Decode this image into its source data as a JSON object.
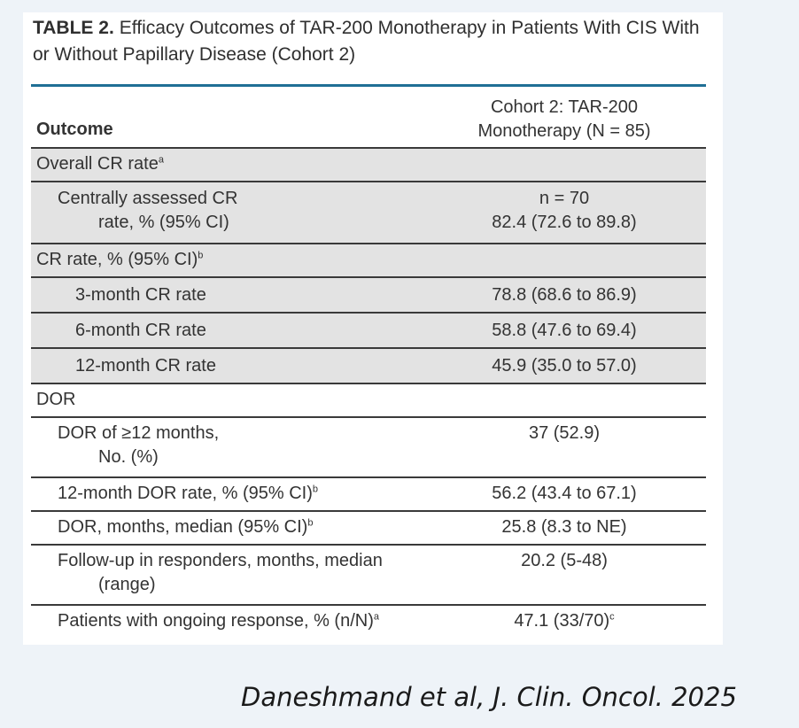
{
  "table": {
    "label": "TABLE 2.",
    "title": "Efficacy Outcomes of TAR-200 Monotherapy in Patients With CIS With or Without Papillary Disease (Cohort 2)",
    "header_outcome": "Outcome",
    "header_col_line1": "Cohort 2: TAR-200",
    "header_col_line2": "Monotherapy (N = 85)",
    "rows": [
      {
        "label": "Overall CR rate",
        "sup": "a",
        "value": ""
      },
      {
        "label_line1": "Centrally assessed CR",
        "label_line2": "rate, % (95% CI)",
        "value_line1": "n = 70",
        "value_line2": "82.4 (72.6 to 89.8)"
      },
      {
        "label": "CR rate, % (95% CI)",
        "sup": "b",
        "value": ""
      },
      {
        "label": "3-month CR rate",
        "value": "78.8 (68.6 to 86.9)"
      },
      {
        "label": "6-month CR rate",
        "value": "58.8 (47.6 to 69.4)"
      },
      {
        "label": "12-month CR rate",
        "value": "45.9 (35.0 to 57.0)"
      },
      {
        "label": "DOR",
        "value": ""
      },
      {
        "label_line1": "DOR of ≥12 months,",
        "label_line2": "No. (%)",
        "value": "37 (52.9)"
      },
      {
        "label": "12-month DOR rate, % (95% CI)",
        "sup": "b",
        "value": "56.2 (43.4 to 67.1)"
      },
      {
        "label": "DOR, months, median (95% CI)",
        "sup": "b",
        "value": "25.8 (8.3 to NE)"
      },
      {
        "label_line1": "Follow-up in responders, months, median",
        "label_line2": "(range)",
        "value": "20.2 (5-48)"
      },
      {
        "label": "Patients with ongoing response, % (n/N)",
        "sup": "a",
        "value": "47.1 (33/70)",
        "value_sup": "c"
      }
    ]
  },
  "citation": "Daneshmand et al, J. Clin. Oncol. 2025"
}
